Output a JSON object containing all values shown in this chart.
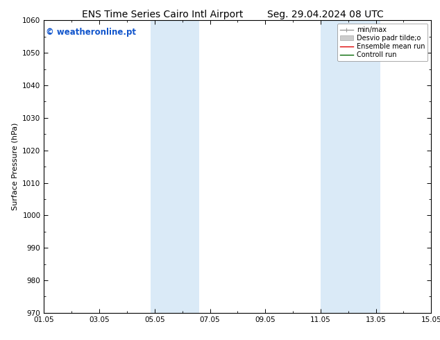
{
  "title_left": "ENS Time Series Cairo Intl Airport",
  "title_right": "Seg. 29.04.2024 08 UTC",
  "ylabel": "Surface Pressure (hPa)",
  "ylim": [
    970,
    1060
  ],
  "yticks": [
    970,
    980,
    990,
    1000,
    1010,
    1020,
    1030,
    1040,
    1050,
    1060
  ],
  "xlim": [
    0,
    14
  ],
  "xtick_positions": [
    0,
    2,
    4,
    6,
    8,
    10,
    12,
    14
  ],
  "xtick_labels": [
    "01.05",
    "03.05",
    "05.05",
    "07.05",
    "09.05",
    "11.05",
    "13.05",
    "15.05"
  ],
  "watermark": "© weatheronline.pt",
  "watermark_color": "#1155cc",
  "background_color": "#ffffff",
  "plot_background": "#ffffff",
  "shaded_bands": [
    {
      "xmin": 3.85,
      "xmax": 5.6,
      "color": "#daeaf7"
    },
    {
      "xmin": 10.0,
      "xmax": 12.15,
      "color": "#daeaf7"
    }
  ],
  "legend_entries": [
    {
      "label": "min/max",
      "color": "#999999",
      "lw": 1.0,
      "ls": "-",
      "type": "line_caps"
    },
    {
      "label": "Desvio padr tilde;o",
      "color": "#cccccc",
      "lw": 5,
      "ls": "-",
      "type": "band"
    },
    {
      "label": "Ensemble mean run",
      "color": "#dd0000",
      "lw": 1.0,
      "ls": "-",
      "type": "line"
    },
    {
      "label": "Controll run",
      "color": "#006600",
      "lw": 1.0,
      "ls": "-",
      "type": "line"
    }
  ],
  "title_fontsize": 10,
  "axis_fontsize": 8,
  "tick_fontsize": 7.5,
  "watermark_fontsize": 8.5,
  "border_color": "#000000"
}
